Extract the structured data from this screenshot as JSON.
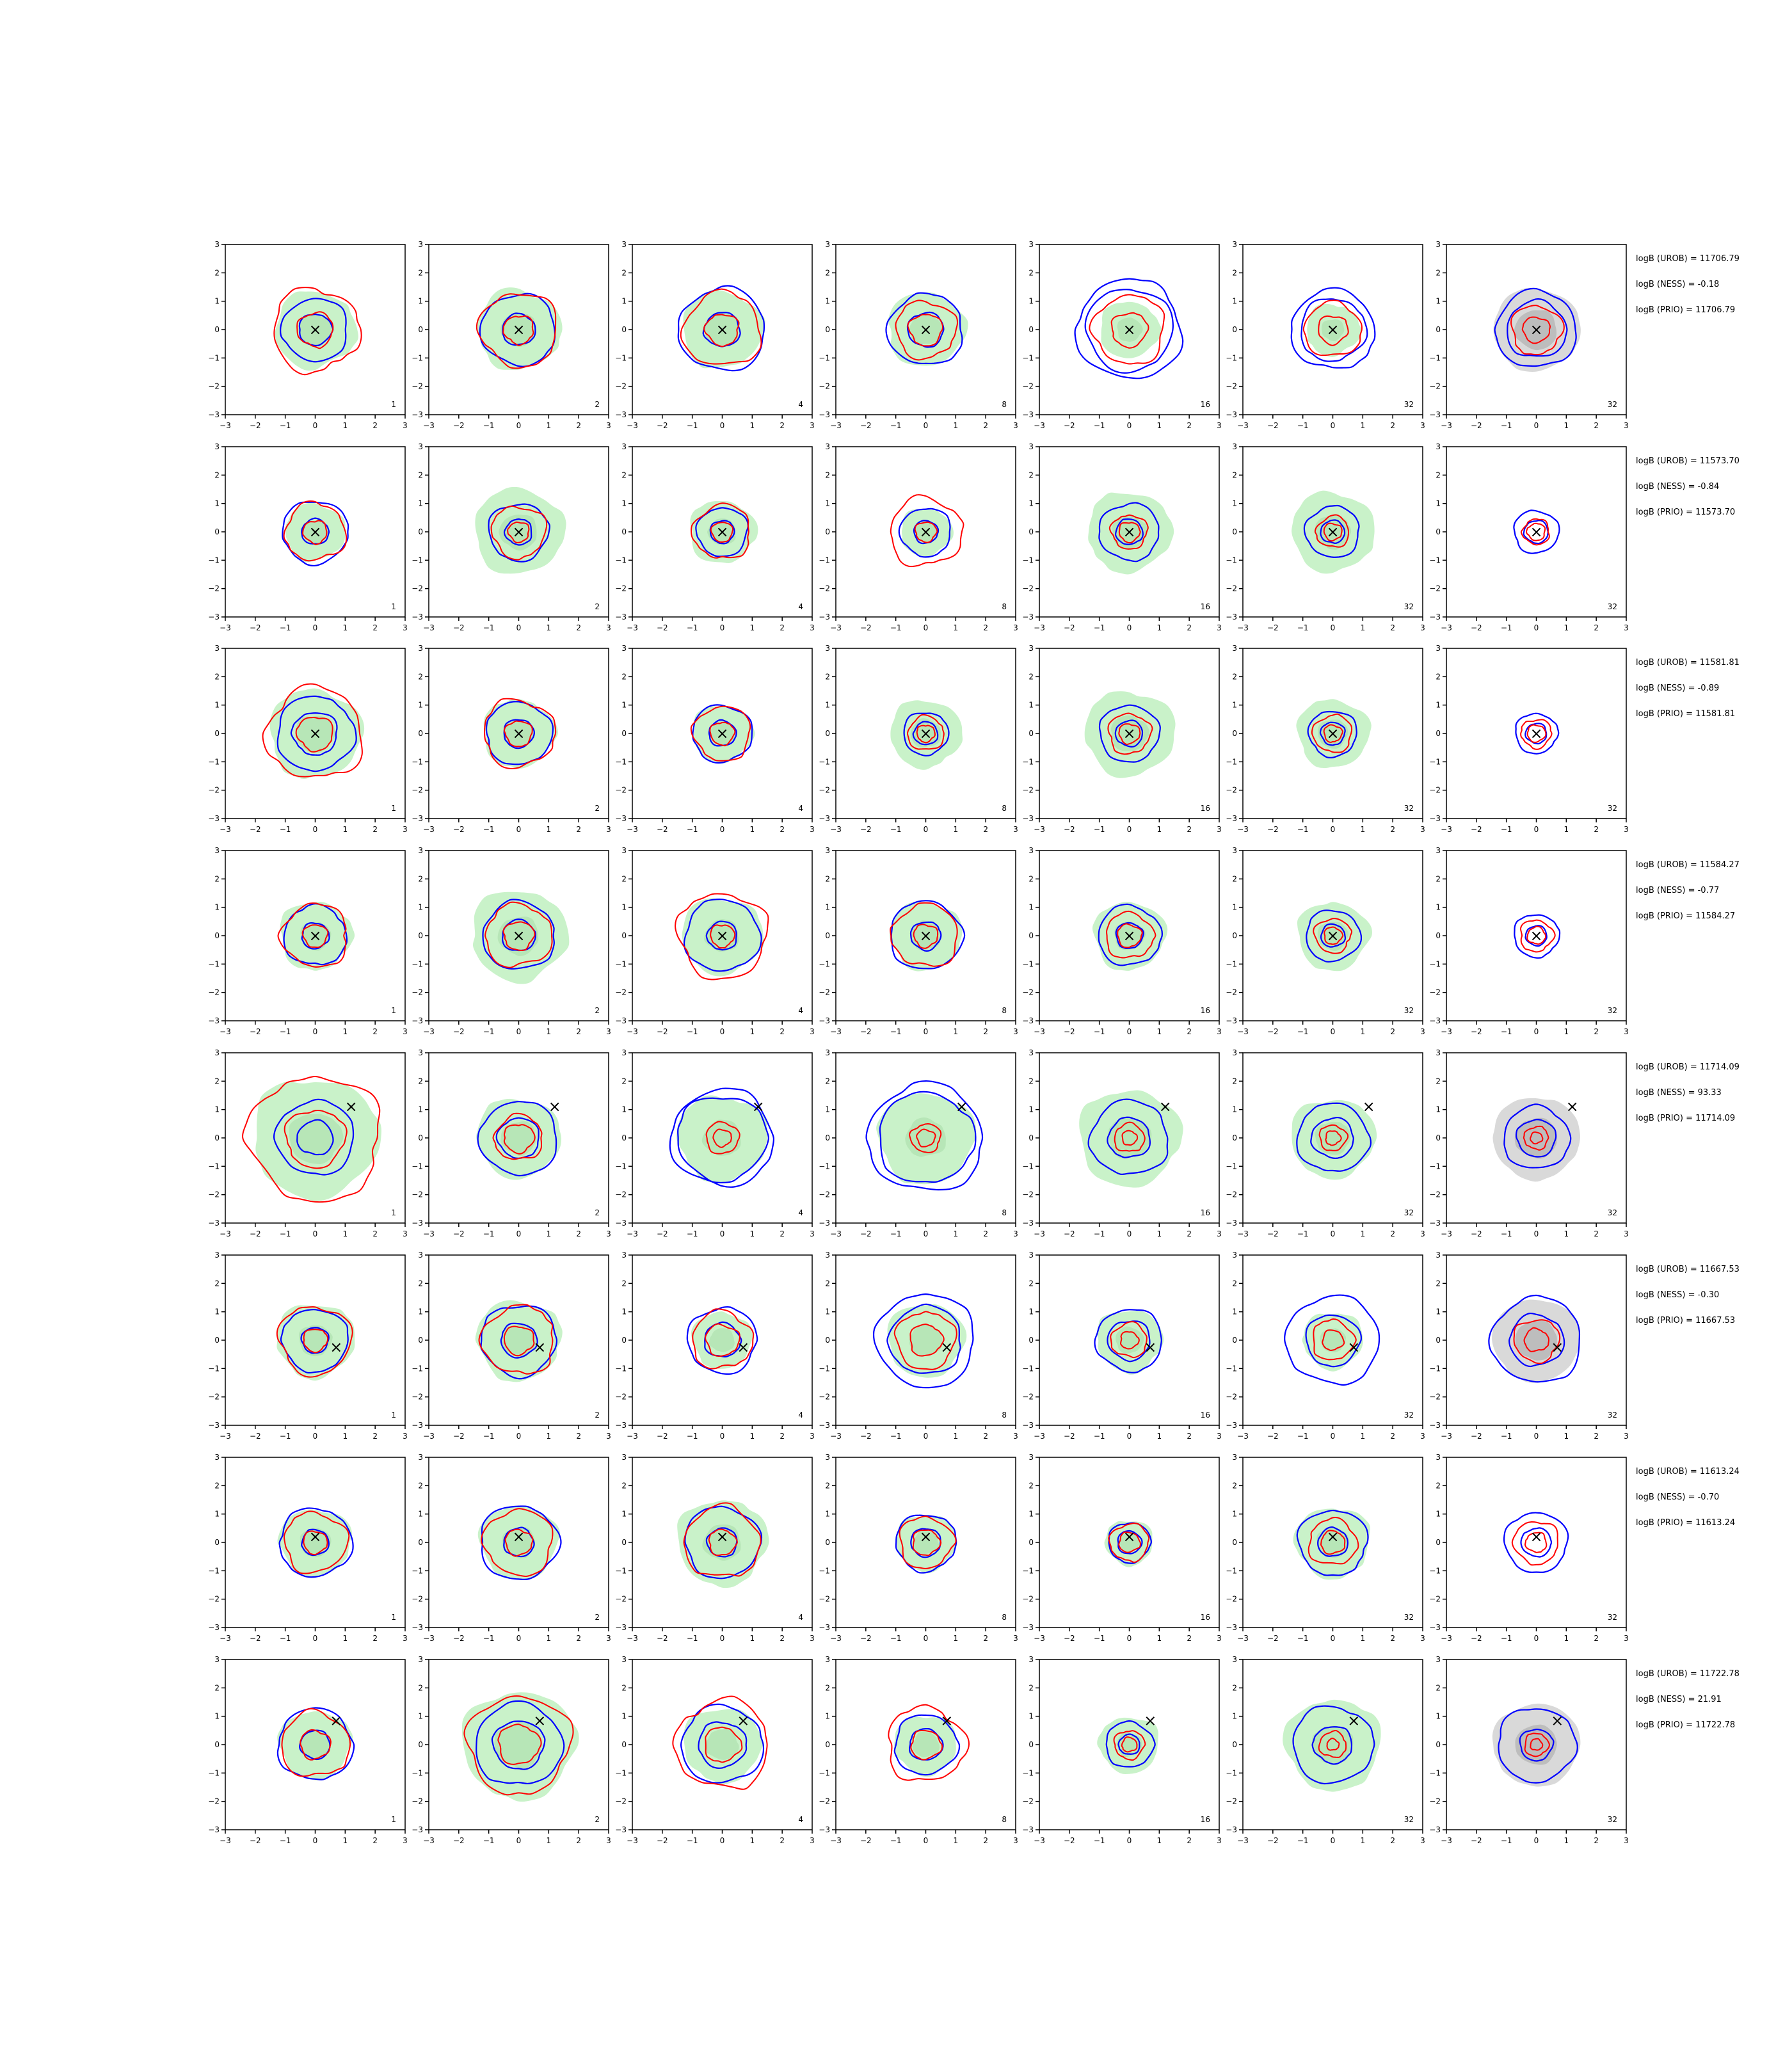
{
  "figure": {
    "background": "#ffffff",
    "colors": {
      "filled_density": "#c9f2c9",
      "filled_density_inner": "#a8dca8",
      "prior_filled": "#d9d9d9",
      "prior_filled_inner": "#bdbdbd",
      "blue_contour": "#0000ff",
      "red_contour": "#ff0000",
      "true_marker": "#000000"
    }
  },
  "chart_data": {
    "type": "contour-grid",
    "rows": 8,
    "cols": 7,
    "xlim": [
      -3,
      3
    ],
    "ylim": [
      -3,
      3
    ],
    "xticks": [
      "−3",
      "−2",
      "−1",
      "0",
      "1",
      "2",
      "3"
    ],
    "yticks": [
      "3",
      "2",
      "1",
      "0",
      "−1",
      "−2",
      "−3"
    ],
    "column_labels": [
      "1",
      "2",
      "4",
      "8",
      "16",
      "32",
      "32"
    ],
    "marker_symbol": "×",
    "rows_data": [
      {
        "stats": [
          "logB (UROB) = 11706.79",
          "logB (NESS) = -0.18",
          "logB (PRIO) = 11706.79"
        ],
        "marker": [
          0,
          0
        ],
        "sizes": [
          {
            "fill": 1.35,
            "blue": [
              1.1,
              0.55
            ],
            "red": [
              1.45,
              0.6
            ]
          },
          {
            "fill": 1.4,
            "blue": [
              1.25,
              0.55
            ],
            "red": [
              1.3,
              0.5
            ]
          },
          {
            "fill": 1.35,
            "blue": [
              1.45,
              0.6
            ],
            "red": [
              1.3,
              0.55
            ]
          },
          {
            "fill": 1.3,
            "blue": [
              1.25,
              0.6
            ],
            "red": [
              1.0,
              0.55
            ]
          },
          {
            "fill": 1.0,
            "blue": [
              1.75,
              1.45
            ],
            "red": [
              1.2,
              0.6
            ]
          },
          {
            "fill": 0.9,
            "blue": [
              1.4,
              1.1
            ],
            "red": [
              0.95,
              0.5
            ]
          },
          {
            "fill": 0.0,
            "blue": [
              1.35,
              1.0
            ],
            "red": [
              0.85,
              0.45
            ],
            "prior": true
          }
        ]
      },
      {
        "stats": [
          "logB (UROB) = 11573.70",
          "logB (NESS) = -0.84",
          "logB (PRIO) = 11573.70"
        ],
        "marker": [
          0,
          0
        ],
        "sizes": [
          {
            "fill": 1.0,
            "blue": [
              1.1,
              0.45
            ],
            "red": [
              1.0,
              0.4
            ]
          },
          {
            "fill": 1.5,
            "blue": [
              1.0,
              0.45
            ],
            "red": [
              0.9,
              0.35
            ]
          },
          {
            "fill": 1.1,
            "blue": [
              0.85,
              0.4
            ],
            "red": [
              0.95,
              0.35
            ]
          },
          {
            "fill": 0.85,
            "blue": [
              0.85,
              0.4
            ],
            "red": [
              1.2,
              0.35
            ]
          },
          {
            "fill": 1.4,
            "blue": [
              1.0,
              0.45
            ],
            "red": [
              0.6,
              0.35
            ]
          },
          {
            "fill": 1.4,
            "blue": [
              0.9,
              0.4
            ],
            "red": [
              0.55,
              0.3
            ]
          },
          {
            "fill": 0.0,
            "blue": [
              0.75,
              0.4
            ],
            "red": [
              0.45,
              0.3
            ]
          }
        ]
      },
      {
        "stats": [
          "logB (UROB) = 11581.81",
          "logB (NESS) = -0.89",
          "logB (PRIO) = 11581.81"
        ],
        "marker": [
          0,
          0
        ],
        "sizes": [
          {
            "fill": 1.55,
            "blue": [
              1.3,
              0.75
            ],
            "red": [
              1.6,
              0.6
            ]
          },
          {
            "fill": 1.2,
            "blue": [
              1.1,
              0.5
            ],
            "red": [
              1.2,
              0.45
            ]
          },
          {
            "fill": 1.0,
            "blue": [
              1.0,
              0.45
            ],
            "red": [
              0.95,
              0.4
            ]
          },
          {
            "fill": 1.2,
            "blue": [
              0.75,
              0.4
            ],
            "red": [
              0.6,
              0.3
            ]
          },
          {
            "fill": 1.5,
            "blue": [
              1.0,
              0.45
            ],
            "red": [
              0.7,
              0.35
            ]
          },
          {
            "fill": 1.2,
            "blue": [
              0.8,
              0.4
            ],
            "red": [
              0.65,
              0.3
            ]
          },
          {
            "fill": 0.0,
            "blue": [
              0.7,
              0.35
            ],
            "red": [
              0.5,
              0.3
            ]
          }
        ]
      },
      {
        "stats": [
          "logB (UROB) = 11584.27",
          "logB (NESS) = -0.77",
          "logB (PRIO) = 11584.27"
        ],
        "marker": [
          0,
          0
        ],
        "sizes": [
          {
            "fill": 1.2,
            "blue": [
              1.05,
              0.45
            ],
            "red": [
              1.1,
              0.4
            ]
          },
          {
            "fill": 1.6,
            "blue": [
              1.2,
              0.55
            ],
            "red": [
              1.1,
              0.5
            ]
          },
          {
            "fill": 1.35,
            "blue": [
              1.25,
              0.5
            ],
            "red": [
              1.5,
              0.4
            ]
          },
          {
            "fill": 1.2,
            "blue": [
              1.2,
              0.5
            ],
            "red": [
              1.1,
              0.4
            ]
          },
          {
            "fill": 1.2,
            "blue": [
              1.05,
              0.45
            ],
            "red": [
              0.8,
              0.4
            ]
          },
          {
            "fill": 1.2,
            "blue": [
              0.9,
              0.4
            ],
            "red": [
              0.6,
              0.3
            ]
          },
          {
            "fill": 0.0,
            "blue": [
              0.75,
              0.35
            ],
            "red": [
              0.55,
              0.3
            ]
          }
        ]
      },
      {
        "stats": [
          "logB (UROB) = 11714.09",
          "logB (NESS) = 93.33",
          "logB (PRIO) = 11714.09"
        ],
        "marker": [
          1.2,
          1.1
        ],
        "sizes": [
          {
            "fill": 2.1,
            "blue": [
              1.3,
              0.6
            ],
            "red": [
              2.2,
              1.0
            ]
          },
          {
            "fill": 1.4,
            "blue": [
              1.3,
              0.7
            ],
            "red": [
              0.8,
              0.5
            ]
          },
          {
            "fill": 1.5,
            "blue": [
              1.7,
              1.5
            ],
            "red": [
              0.55,
              0.3
            ]
          },
          {
            "fill": 1.6,
            "blue": [
              1.9,
              1.6
            ],
            "red": [
              0.5,
              0.3
            ]
          },
          {
            "fill": 1.7,
            "blue": [
              1.3,
              0.7
            ],
            "red": [
              0.5,
              0.25
            ]
          },
          {
            "fill": 1.4,
            "blue": [
              1.2,
              0.7
            ],
            "red": [
              0.45,
              0.25
            ]
          },
          {
            "fill": 0.0,
            "blue": [
              1.1,
              0.65
            ],
            "red": [
              0.4,
              0.2
            ],
            "prior": true
          }
        ]
      },
      {
        "stats": [
          "logB (UROB) = 11667.53",
          "logB (NESS) = -0.30",
          "logB (PRIO) = 11667.53"
        ],
        "marker": [
          0.7,
          -0.25
        ],
        "sizes": [
          {
            "fill": 1.3,
            "blue": [
              1.1,
              0.45
            ],
            "red": [
              1.2,
              0.4
            ]
          },
          {
            "fill": 1.4,
            "blue": [
              1.25,
              0.6
            ],
            "red": [
              1.2,
              0.5
            ]
          },
          {
            "fill": 1.0,
            "blue": [
              1.15,
              0.6
            ],
            "red": [
              1.0,
              0.55
            ]
          },
          {
            "fill": 1.3,
            "blue": [
              1.65,
              1.2
            ],
            "red": [
              1.0,
              0.55
            ]
          },
          {
            "fill": 1.1,
            "blue": [
              1.1,
              0.7
            ],
            "red": [
              0.6,
              0.3
            ]
          },
          {
            "fill": 1.0,
            "blue": [
              1.55,
              0.9
            ],
            "red": [
              0.7,
              0.35
            ]
          },
          {
            "fill": 0.0,
            "blue": [
              1.5,
              0.9
            ],
            "red": [
              0.75,
              0.4
            ],
            "prior": true
          }
        ]
      },
      {
        "stats": [
          "logB (UROB) = 11613.24",
          "logB (NESS) = -0.70",
          "logB (PRIO) = 11613.24"
        ],
        "marker": [
          0,
          0.2
        ],
        "sizes": [
          {
            "fill": 1.2,
            "blue": [
              1.2,
              0.45
            ],
            "red": [
              1.05,
              0.4
            ]
          },
          {
            "fill": 1.3,
            "blue": [
              1.3,
              0.5
            ],
            "red": [
              1.15,
              0.45
            ]
          },
          {
            "fill": 1.5,
            "blue": [
              1.25,
              0.5
            ],
            "red": [
              1.25,
              0.45
            ]
          },
          {
            "fill": 1.0,
            "blue": [
              1.0,
              0.5
            ],
            "red": [
              0.9,
              0.45
            ]
          },
          {
            "fill": 0.8,
            "blue": [
              0.7,
              0.4
            ],
            "red": [
              0.65,
              0.35
            ]
          },
          {
            "fill": 1.25,
            "blue": [
              1.15,
              0.5
            ],
            "red": [
              0.8,
              0.4
            ]
          },
          {
            "fill": 0.0,
            "blue": [
              1.05,
              0.5
            ],
            "red": [
              0.75,
              0.35
            ]
          }
        ]
      },
      {
        "stats": [
          "logB (UROB) = 11722.78",
          "logB (NESS) = 21.91",
          "logB (PRIO) = 11722.78"
        ],
        "marker": [
          0.7,
          0.85
        ],
        "sizes": [
          {
            "fill": 1.2,
            "blue": [
              1.25,
              0.5
            ],
            "red": [
              1.15,
              0.5
            ]
          },
          {
            "fill": 1.9,
            "blue": [
              1.45,
              0.85
            ],
            "red": [
              1.7,
              0.7
            ]
          },
          {
            "fill": 1.3,
            "blue": [
              1.35,
              0.8
            ],
            "red": [
              1.55,
              0.6
            ]
          },
          {
            "fill": 1.05,
            "blue": [
              1.05,
              0.55
            ],
            "red": [
              1.3,
              0.5
            ]
          },
          {
            "fill": 1.0,
            "blue": [
              0.8,
              0.35
            ],
            "red": [
              0.5,
              0.25
            ]
          },
          {
            "fill": 1.6,
            "blue": [
              1.35,
              0.65
            ],
            "red": [
              0.45,
              0.2
            ]
          },
          {
            "fill": 0.0,
            "blue": [
              1.3,
              0.55
            ],
            "red": [
              0.4,
              0.2
            ],
            "prior": true
          }
        ]
      }
    ]
  }
}
